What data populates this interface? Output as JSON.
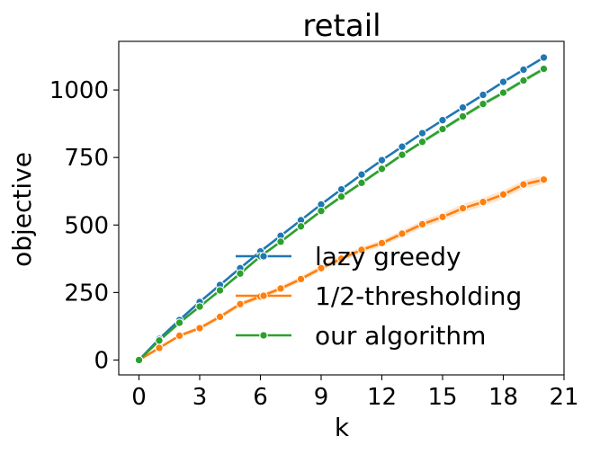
{
  "chart_data": {
    "type": "line",
    "title": "retail",
    "xlabel": "k",
    "ylabel": "objective",
    "xlim": [
      -1,
      21
    ],
    "ylim": [
      -55,
      1180
    ],
    "xticks": [
      0,
      3,
      6,
      9,
      12,
      15,
      18,
      21
    ],
    "yticks": [
      0,
      250,
      500,
      750,
      1000
    ],
    "grid": false,
    "legend_position": "lower-right",
    "x": [
      0,
      1,
      2,
      3,
      4,
      5,
      6,
      7,
      8,
      9,
      10,
      11,
      12,
      13,
      14,
      15,
      16,
      17,
      18,
      19,
      20
    ],
    "series": [
      {
        "name": "lazy greedy",
        "color": "#1f77b4",
        "values": [
          0,
          78,
          148,
          215,
          278,
          340,
          402,
          460,
          518,
          576,
          632,
          687,
          740,
          790,
          840,
          888,
          935,
          982,
          1030,
          1075,
          1120
        ]
      },
      {
        "name": "1/2-thresholding",
        "color": "#ff7f0e",
        "values": [
          0,
          45,
          90,
          118,
          160,
          207,
          235,
          265,
          300,
          340,
          375,
          408,
          433,
          468,
          503,
          530,
          562,
          585,
          613,
          650,
          668
        ],
        "band_lower": [
          0,
          40,
          84,
          110,
          152,
          198,
          226,
          256,
          290,
          330,
          365,
          397,
          422,
          456,
          490,
          516,
          547,
          570,
          598,
          635,
          653
        ],
        "band_upper": [
          0,
          50,
          96,
          126,
          168,
          216,
          244,
          274,
          310,
          350,
          385,
          419,
          444,
          480,
          516,
          544,
          577,
          600,
          628,
          665,
          683
        ]
      },
      {
        "name": "our algorithm",
        "color": "#2ca02c",
        "values": [
          0,
          72,
          138,
          198,
          258,
          320,
          384,
          438,
          495,
          552,
          605,
          656,
          708,
          760,
          808,
          855,
          902,
          948,
          990,
          1035,
          1078
        ],
        "band_lower": [
          0,
          69,
          134,
          193,
          253,
          314,
          378,
          432,
          489,
          546,
          598,
          649,
          701,
          753,
          801,
          847,
          894,
          940,
          982,
          1027,
          1070
        ],
        "band_upper": [
          0,
          75,
          142,
          203,
          263,
          326,
          390,
          444,
          501,
          558,
          612,
          663,
          715,
          767,
          815,
          863,
          910,
          956,
          998,
          1043,
          1086
        ]
      }
    ]
  }
}
